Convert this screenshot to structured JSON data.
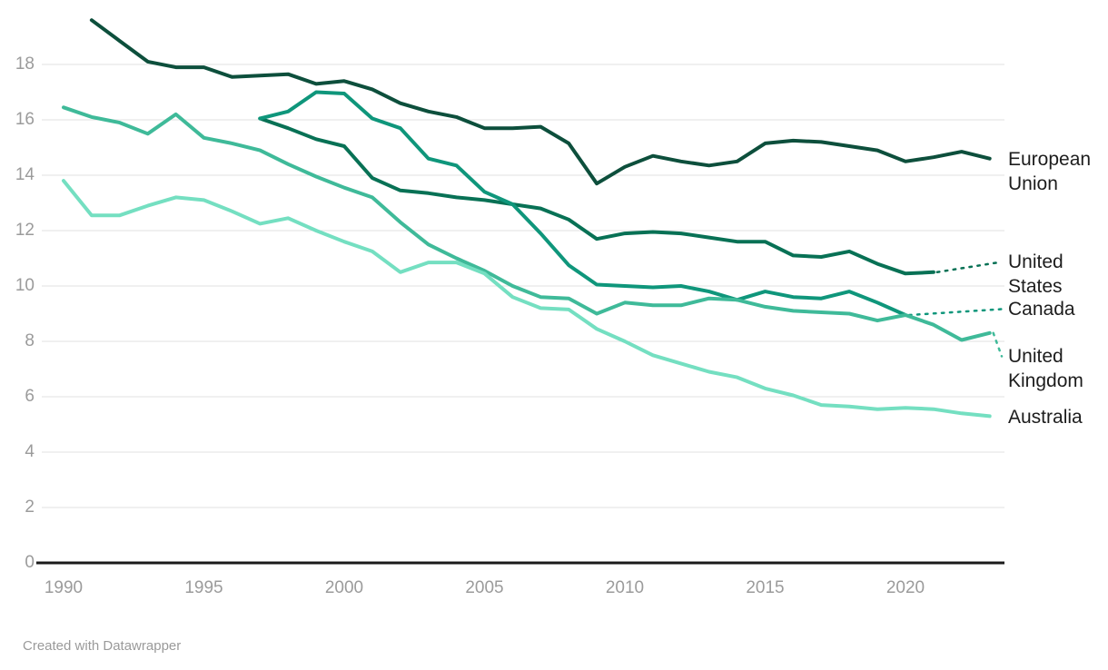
{
  "chart_data": {
    "type": "line",
    "title": "",
    "xlabel": "",
    "ylabel": "",
    "x_ticks": [
      1990,
      1995,
      2000,
      2005,
      2010,
      2015,
      2020
    ],
    "y_ticks": [
      0,
      2,
      4,
      6,
      8,
      10,
      12,
      14,
      16,
      18
    ],
    "xlim": [
      1990,
      2023
    ],
    "ylim": [
      0,
      19.6
    ],
    "grid": "horizontal",
    "legend_position": "right-edge-direct-labels",
    "series": [
      {
        "name": "European Union",
        "color": "#0d4f3c",
        "start_year": 1991,
        "end_year": 2023,
        "leader_line": false,
        "values": [
          19.6,
          18.85,
          18.1,
          17.9,
          17.9,
          17.55,
          17.6,
          17.65,
          17.3,
          17.4,
          17.1,
          16.6,
          16.3,
          16.1,
          15.7,
          15.7,
          15.75,
          15.15,
          13.7,
          14.3,
          14.7,
          14.5,
          14.35,
          14.5,
          15.15,
          15.25,
          15.2,
          15.05,
          14.9,
          14.5,
          14.65,
          14.85,
          14.6
        ]
      },
      {
        "name": "United States",
        "color": "#087155",
        "start_year": 1997,
        "end_year": 2021,
        "leader_line": true,
        "values": [
          16.05,
          15.7,
          15.3,
          15.05,
          13.9,
          13.45,
          13.35,
          13.2,
          13.1,
          12.95,
          12.8,
          12.4,
          11.7,
          11.9,
          11.95,
          11.9,
          11.75,
          11.6,
          11.6,
          11.1,
          11.05,
          11.25,
          10.8,
          10.45,
          10.5
        ]
      },
      {
        "name": "Canada",
        "color": "#0f967b",
        "start_year": 1997,
        "end_year": 2020,
        "leader_line": true,
        "values": [
          16.05,
          16.3,
          17.0,
          16.95,
          16.05,
          15.7,
          14.6,
          14.35,
          13.4,
          12.95,
          11.9,
          10.75,
          10.05,
          10.0,
          9.95,
          10.0,
          9.8,
          9.5,
          9.8,
          9.6,
          9.55,
          9.8,
          9.4,
          8.95
        ]
      },
      {
        "name": "United Kingdom",
        "color": "#3fba99",
        "start_year": 1990,
        "end_year": 2023,
        "leader_line": true,
        "values": [
          16.45,
          16.1,
          15.9,
          15.5,
          16.2,
          15.35,
          15.15,
          14.9,
          14.4,
          13.95,
          13.55,
          13.2,
          12.3,
          11.5,
          11.0,
          10.55,
          10.0,
          9.6,
          9.55,
          9.0,
          9.4,
          9.3,
          9.3,
          9.55,
          9.5,
          9.25,
          9.1,
          9.05,
          9.0,
          8.75,
          8.95,
          8.6,
          8.05,
          8.3
        ]
      },
      {
        "name": "Australia",
        "color": "#74dfc1",
        "start_year": 1990,
        "end_year": 2023,
        "leader_line": false,
        "values": [
          13.8,
          12.55,
          12.55,
          12.9,
          13.2,
          13.1,
          12.7,
          12.25,
          12.45,
          12.0,
          11.6,
          11.25,
          10.5,
          10.85,
          10.85,
          10.45,
          9.6,
          9.2,
          9.15,
          8.45,
          8.0,
          7.5,
          7.2,
          6.9,
          6.7,
          6.3,
          6.05,
          5.7,
          5.65,
          5.55,
          5.6,
          5.55,
          5.4,
          5.3
        ]
      }
    ]
  },
  "footer": {
    "credit": "Created with Datawrapper"
  },
  "colors": {
    "background": "#ffffff",
    "grid": "#e2e2e2",
    "axis_line": "#1a1a1a",
    "tick_label": "#9b9b9b",
    "series_label_text": "#1d1d1d"
  }
}
